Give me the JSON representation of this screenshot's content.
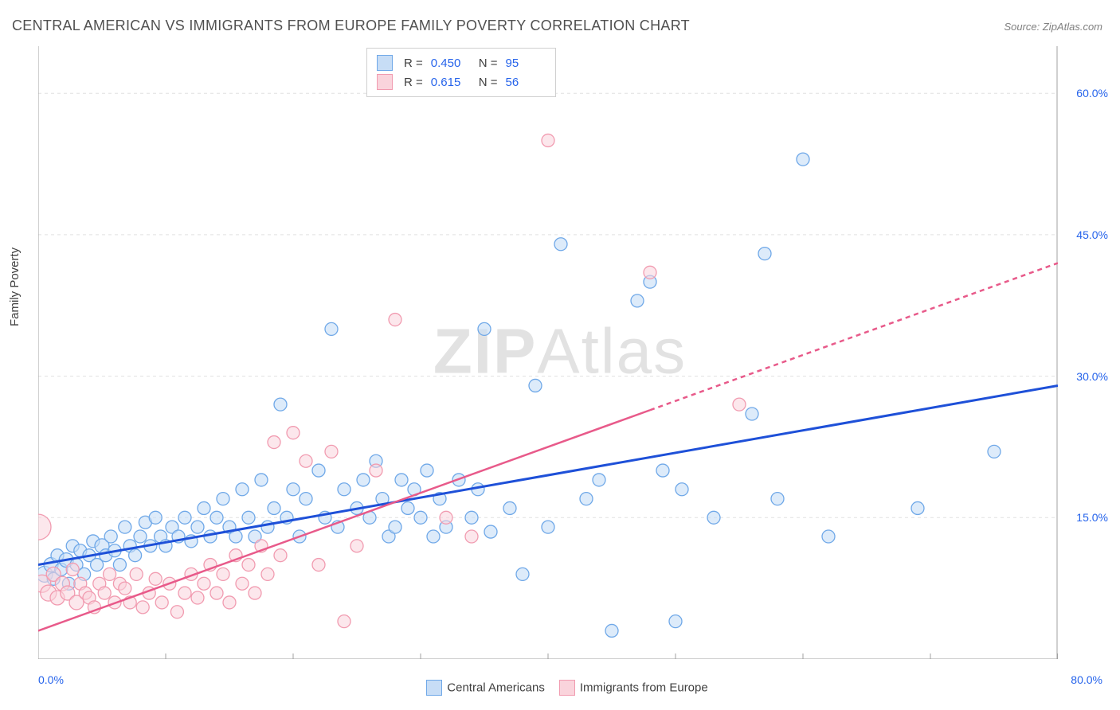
{
  "title": "CENTRAL AMERICAN VS IMMIGRANTS FROM EUROPE FAMILY POVERTY CORRELATION CHART",
  "source": "Source: ZipAtlas.com",
  "y_axis_label": "Family Poverty",
  "watermark": {
    "bold": "ZIP",
    "rest": "Atlas"
  },
  "chart": {
    "type": "scatter-with-regression",
    "xlim": [
      0,
      80
    ],
    "ylim": [
      0,
      65
    ],
    "x_ticks": {
      "min_label": "0.0%",
      "max_label": "80.0%"
    },
    "y_ticks": [
      {
        "v": 15,
        "label": "15.0%"
      },
      {
        "v": 30,
        "label": "30.0%"
      },
      {
        "v": 45,
        "label": "45.0%"
      },
      {
        "v": 60,
        "label": "60.0%"
      }
    ],
    "y_gridlines": [
      15,
      30,
      45,
      60
    ],
    "x_tick_marks": [
      0,
      10,
      20,
      30,
      40,
      50,
      60,
      70,
      80
    ],
    "grid_color": "#e0e0e0",
    "axis_color": "#a0a0a0",
    "tick_label_color": "#2563eb",
    "background_color": "#ffffff"
  },
  "bottom_legend": [
    {
      "label": "Central Americans",
      "fill": "#c7ddf6",
      "stroke": "#6fa8e8"
    },
    {
      "label": "Immigrants from Europe",
      "fill": "#fad4dc",
      "stroke": "#f19bb0"
    }
  ],
  "stats": [
    {
      "fill": "#c7ddf6",
      "stroke": "#6fa8e8",
      "R": "0.450",
      "N": "95"
    },
    {
      "fill": "#fad4dc",
      "stroke": "#f19bb0",
      "R": "0.615",
      "N": "56"
    }
  ],
  "series": [
    {
      "id": "central_americans",
      "name": "Central Americans",
      "point_fill": "#c7ddf6",
      "point_stroke": "#6fa8e8",
      "point_fill_opacity": 0.6,
      "default_r": 8,
      "regression": {
        "color": "#1e50d8",
        "width": 3,
        "p1": [
          0,
          10
        ],
        "p2": [
          80,
          29
        ],
        "dashed_from_x": null
      },
      "points": [
        [
          0.5,
          9,
          10
        ],
        [
          1,
          10,
          9
        ],
        [
          1.2,
          8.5,
          8
        ],
        [
          1.5,
          11,
          8
        ],
        [
          1.8,
          9.5,
          8
        ],
        [
          2.2,
          10.5,
          9
        ],
        [
          2.4,
          8,
          8
        ],
        [
          2.7,
          12,
          8
        ],
        [
          3,
          10,
          8
        ],
        [
          3.3,
          11.5,
          8
        ],
        [
          3.6,
          9,
          8
        ],
        [
          4,
          11,
          8
        ],
        [
          4.3,
          12.5,
          8
        ],
        [
          4.6,
          10,
          8
        ],
        [
          5,
          12,
          9
        ],
        [
          5.3,
          11,
          8
        ],
        [
          5.7,
          13,
          8
        ],
        [
          6,
          11.5,
          8
        ],
        [
          6.4,
          10,
          8
        ],
        [
          6.8,
          14,
          8
        ],
        [
          7.2,
          12,
          8
        ],
        [
          7.6,
          11,
          8
        ],
        [
          8,
          13,
          8
        ],
        [
          8.4,
          14.5,
          8
        ],
        [
          8.8,
          12,
          8
        ],
        [
          9.2,
          15,
          8
        ],
        [
          9.6,
          13,
          8
        ],
        [
          10,
          12,
          8
        ],
        [
          10.5,
          14,
          8
        ],
        [
          11,
          13,
          8
        ],
        [
          11.5,
          15,
          8
        ],
        [
          12,
          12.5,
          8
        ],
        [
          12.5,
          14,
          8
        ],
        [
          13,
          16,
          8
        ],
        [
          13.5,
          13,
          8
        ],
        [
          14,
          15,
          8
        ],
        [
          14.5,
          17,
          8
        ],
        [
          15,
          14,
          8
        ],
        [
          15.5,
          13,
          8
        ],
        [
          16,
          18,
          8
        ],
        [
          16.5,
          15,
          8
        ],
        [
          17,
          13,
          8
        ],
        [
          17.5,
          19,
          8
        ],
        [
          18,
          14,
          8
        ],
        [
          18.5,
          16,
          8
        ],
        [
          19,
          27,
          8
        ],
        [
          19.5,
          15,
          8
        ],
        [
          20,
          18,
          8
        ],
        [
          20.5,
          13,
          8
        ],
        [
          21,
          17,
          8
        ],
        [
          22,
          20,
          8
        ],
        [
          22.5,
          15,
          8
        ],
        [
          23,
          35,
          8
        ],
        [
          23.5,
          14,
          8
        ],
        [
          24,
          18,
          8
        ],
        [
          25,
          16,
          8
        ],
        [
          25.5,
          19,
          8
        ],
        [
          26,
          15,
          8
        ],
        [
          26.5,
          21,
          8
        ],
        [
          27,
          17,
          8
        ],
        [
          27.5,
          13,
          8
        ],
        [
          28,
          14,
          8
        ],
        [
          28.5,
          19,
          8
        ],
        [
          29,
          16,
          8
        ],
        [
          29.5,
          18,
          8
        ],
        [
          30,
          15,
          8
        ],
        [
          30.5,
          20,
          8
        ],
        [
          31,
          13,
          8
        ],
        [
          31.5,
          17,
          8
        ],
        [
          32,
          14,
          8
        ],
        [
          33,
          19,
          8
        ],
        [
          34,
          15,
          8
        ],
        [
          34.5,
          18,
          8
        ],
        [
          35,
          35,
          8
        ],
        [
          35.5,
          13.5,
          8
        ],
        [
          37,
          16,
          8
        ],
        [
          38,
          9,
          8
        ],
        [
          39,
          29,
          8
        ],
        [
          40,
          14,
          8
        ],
        [
          41,
          44,
          8
        ],
        [
          43,
          17,
          8
        ],
        [
          44,
          19,
          8
        ],
        [
          45,
          3,
          8
        ],
        [
          47,
          38,
          8
        ],
        [
          48,
          40,
          8
        ],
        [
          49,
          20,
          8
        ],
        [
          50,
          4,
          8
        ],
        [
          50.5,
          18,
          8
        ],
        [
          53,
          15,
          8
        ],
        [
          56,
          26,
          8
        ],
        [
          57,
          43,
          8
        ],
        [
          58,
          17,
          8
        ],
        [
          60,
          53,
          8
        ],
        [
          62,
          13,
          8
        ],
        [
          69,
          16,
          8
        ],
        [
          75,
          22,
          8
        ]
      ]
    },
    {
      "id": "immigrants_europe",
      "name": "Immigrants from Europe",
      "point_fill": "#fad4dc",
      "point_stroke": "#f19bb0",
      "point_fill_opacity": 0.55,
      "default_r": 8,
      "regression": {
        "color": "#e85a8a",
        "width": 2.5,
        "p1": [
          0,
          3
        ],
        "p2": [
          80,
          42
        ],
        "dashed_from_x": 48
      },
      "points": [
        [
          0,
          14,
          16
        ],
        [
          0.3,
          8,
          11
        ],
        [
          0.8,
          7,
          10
        ],
        [
          1.2,
          9,
          9
        ],
        [
          1.5,
          6.5,
          9
        ],
        [
          1.9,
          8,
          9
        ],
        [
          2.3,
          7,
          9
        ],
        [
          2.7,
          9.5,
          8
        ],
        [
          3,
          6,
          9
        ],
        [
          3.3,
          8,
          8
        ],
        [
          3.7,
          7,
          8
        ],
        [
          4,
          6.5,
          8
        ],
        [
          4.4,
          5.5,
          8
        ],
        [
          4.8,
          8,
          8
        ],
        [
          5.2,
          7,
          8
        ],
        [
          5.6,
          9,
          8
        ],
        [
          6,
          6,
          8
        ],
        [
          6.4,
          8,
          8
        ],
        [
          6.8,
          7.5,
          8
        ],
        [
          7.2,
          6,
          8
        ],
        [
          7.7,
          9,
          8
        ],
        [
          8.2,
          5.5,
          8
        ],
        [
          8.7,
          7,
          8
        ],
        [
          9.2,
          8.5,
          8
        ],
        [
          9.7,
          6,
          8
        ],
        [
          10.3,
          8,
          8
        ],
        [
          10.9,
          5,
          8
        ],
        [
          11.5,
          7,
          8
        ],
        [
          12,
          9,
          8
        ],
        [
          12.5,
          6.5,
          8
        ],
        [
          13,
          8,
          8
        ],
        [
          13.5,
          10,
          8
        ],
        [
          14,
          7,
          8
        ],
        [
          14.5,
          9,
          8
        ],
        [
          15,
          6,
          8
        ],
        [
          15.5,
          11,
          8
        ],
        [
          16,
          8,
          8
        ],
        [
          16.5,
          10,
          8
        ],
        [
          17,
          7,
          8
        ],
        [
          17.5,
          12,
          8
        ],
        [
          18,
          9,
          8
        ],
        [
          18.5,
          23,
          8
        ],
        [
          19,
          11,
          8
        ],
        [
          20,
          24,
          8
        ],
        [
          21,
          21,
          8
        ],
        [
          22,
          10,
          8
        ],
        [
          23,
          22,
          8
        ],
        [
          24,
          4,
          8
        ],
        [
          25,
          12,
          8
        ],
        [
          26.5,
          20,
          8
        ],
        [
          28,
          36,
          8
        ],
        [
          32,
          15,
          8
        ],
        [
          34,
          13,
          8
        ],
        [
          40,
          55,
          8
        ],
        [
          48,
          41,
          8
        ],
        [
          55,
          27,
          8
        ]
      ]
    }
  ]
}
